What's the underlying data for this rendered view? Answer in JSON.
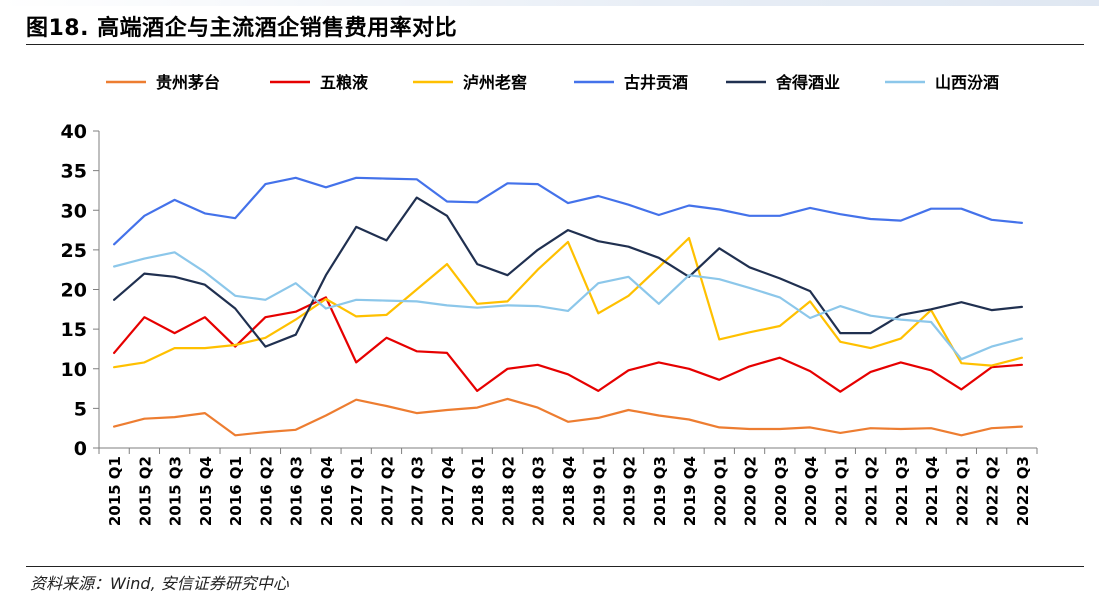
{
  "figure": {
    "title": "图18. 高端酒企与主流酒企销售费用率对比",
    "source": "资料来源：Wind, 安信证券研究中心"
  },
  "chart_data": {
    "type": "line",
    "title": "",
    "xlabel": "",
    "ylabel": "",
    "ylim": [
      0,
      40
    ],
    "yticks": [
      0,
      5,
      10,
      15,
      20,
      25,
      30,
      35,
      40
    ],
    "grid": false,
    "legend_position": "top",
    "categories": [
      "2015 Q1",
      "2015 Q2",
      "2015 Q3",
      "2015 Q4",
      "2016 Q1",
      "2016 Q2",
      "2016 Q3",
      "2016 Q4",
      "2017 Q1",
      "2017 Q2",
      "2017 Q3",
      "2017 Q4",
      "2018 Q1",
      "2018 Q2",
      "2018 Q3",
      "2018 Q4",
      "2019 Q1",
      "2019 Q2",
      "2019 Q3",
      "2019 Q4",
      "2020 Q1",
      "2020 Q2",
      "2020 Q3",
      "2020 Q4",
      "2021 Q1",
      "2021 Q2",
      "2021 Q3",
      "2021 Q4",
      "2022 Q1",
      "2022 Q2",
      "2022 Q3"
    ],
    "series": [
      {
        "name": "贵州茅台",
        "color": "#ED7D31",
        "values": [
          2.7,
          3.7,
          3.9,
          4.4,
          1.6,
          2.0,
          2.3,
          4.1,
          6.1,
          5.3,
          4.4,
          4.8,
          5.1,
          6.2,
          5.1,
          3.3,
          3.8,
          4.8,
          4.1,
          3.6,
          2.6,
          2.4,
          2.4,
          2.6,
          1.9,
          2.5,
          2.4,
          2.5,
          1.6,
          2.5,
          2.7
        ]
      },
      {
        "name": "五粮液",
        "color": "#E60000",
        "values": [
          12.0,
          16.5,
          14.5,
          16.5,
          12.8,
          16.5,
          17.2,
          19.0,
          10.8,
          13.9,
          12.2,
          12.0,
          7.2,
          10.0,
          10.5,
          9.3,
          7.2,
          9.8,
          10.8,
          10.0,
          8.6,
          10.3,
          11.4,
          9.7,
          7.1,
          9.6,
          10.8,
          9.8,
          7.4,
          10.2,
          10.5
        ]
      },
      {
        "name": "泸州老窖",
        "color": "#FFC000",
        "values": [
          10.2,
          10.8,
          12.6,
          12.6,
          13.0,
          13.9,
          16.2,
          18.8,
          16.6,
          16.8,
          20.0,
          23.2,
          18.2,
          18.5,
          22.5,
          26.0,
          17.0,
          19.2,
          22.8,
          26.5,
          13.7,
          14.6,
          15.4,
          18.5,
          13.4,
          12.6,
          13.8,
          17.4,
          10.7,
          10.4,
          11.4
        ]
      },
      {
        "name": "古井贡酒",
        "color": "#4472EA",
        "values": [
          25.7,
          29.3,
          31.3,
          29.6,
          29.0,
          33.3,
          34.1,
          32.9,
          34.1,
          34.0,
          33.9,
          31.1,
          31.0,
          33.4,
          33.3,
          30.9,
          31.8,
          30.7,
          29.4,
          30.6,
          30.1,
          29.3,
          29.3,
          30.3,
          29.5,
          28.9,
          28.7,
          30.2,
          30.2,
          28.8,
          28.4
        ]
      },
      {
        "name": "舍得酒业",
        "color": "#203050",
        "values": [
          18.7,
          22.0,
          21.6,
          20.6,
          17.6,
          12.8,
          14.3,
          21.8,
          27.9,
          26.2,
          31.6,
          29.3,
          23.2,
          21.8,
          25.0,
          27.5,
          26.1,
          25.4,
          24.0,
          21.6,
          25.2,
          22.8,
          21.4,
          19.8,
          14.5,
          14.5,
          16.8,
          17.5,
          18.4,
          17.4,
          17.8
        ]
      },
      {
        "name": "山西汾酒",
        "color": "#8CC7EA",
        "values": [
          22.9,
          23.9,
          24.7,
          22.2,
          19.2,
          18.7,
          20.8,
          17.6,
          18.7,
          18.6,
          18.5,
          18.0,
          17.7,
          18.0,
          17.9,
          17.3,
          20.8,
          21.6,
          18.2,
          21.8,
          21.3,
          20.2,
          19.0,
          16.4,
          17.9,
          16.7,
          16.2,
          15.9,
          11.2,
          12.8,
          13.8
        ]
      }
    ]
  }
}
